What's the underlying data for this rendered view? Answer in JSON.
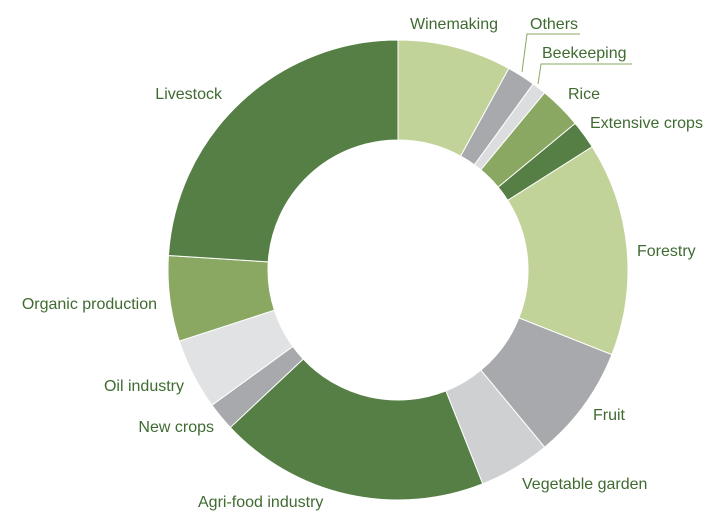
{
  "chart_data": {
    "type": "donut",
    "categories": [
      "Winemaking",
      "Others",
      "Beekeeping",
      "Rice",
      "Extensive crops",
      "Forestry",
      "Fruit",
      "Vegetable garden",
      "Agri-food industry",
      "New crops",
      "Oil industry",
      "Organic production",
      "Livestock"
    ],
    "values": [
      8,
      2,
      1,
      3,
      2,
      15,
      8,
      5,
      19,
      2,
      5,
      6,
      24
    ],
    "colors": [
      "#c2d39a",
      "#a7a9ac",
      "#dcdddf",
      "#8aa862",
      "#567f45",
      "#c2d39a",
      "#a7a9ac",
      "#cfd0d2",
      "#567f45",
      "#a7a9ac",
      "#e1e2e3",
      "#8aa862",
      "#567f45"
    ]
  }
}
